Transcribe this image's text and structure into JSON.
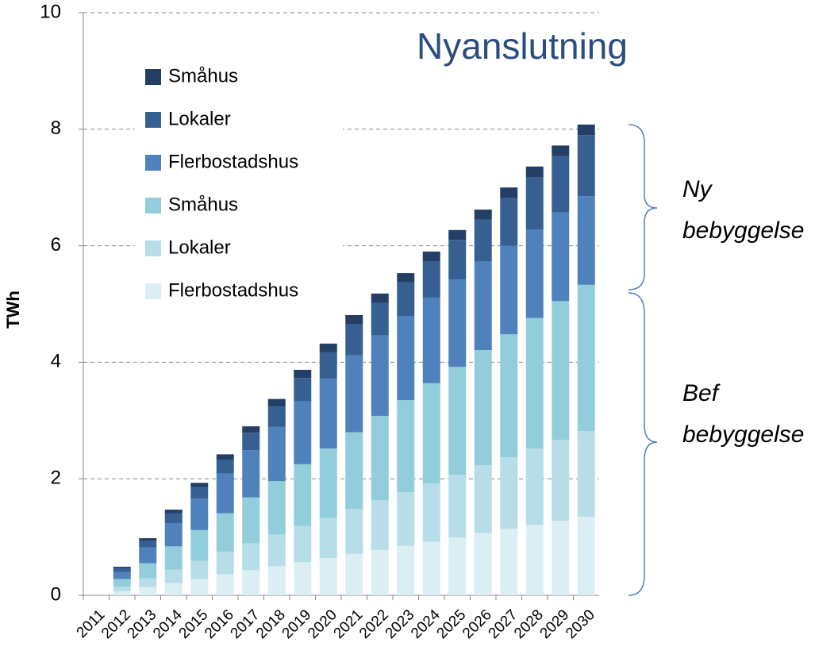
{
  "chart_data": {
    "type": "stacked_bar",
    "title": "Nyanslutning",
    "y_label": "TWh",
    "annotations": [
      [
        "Ny",
        "bebyggelse"
      ],
      [
        "Bef",
        "bebyggelse"
      ]
    ],
    "categories": [
      "2011",
      "2012",
      "2013",
      "2014",
      "2015",
      "2016",
      "2017",
      "2018",
      "2019",
      "2020",
      "2021",
      "2022",
      "2023",
      "2024",
      "2025",
      "2026",
      "2027",
      "2028",
      "2029",
      "2030"
    ],
    "ylim": [
      0,
      10
    ],
    "yticks": [
      0,
      2,
      4,
      6,
      8,
      10
    ],
    "grid": true,
    "series": [
      {
        "name": "Flerbostadshus",
        "color": "#dbeef4",
        "values": [
          0,
          0.07,
          0.14,
          0.21,
          0.28,
          0.36,
          0.43,
          0.5,
          0.57,
          0.64,
          0.71,
          0.78,
          0.85,
          0.92,
          0.99,
          1.07,
          1.14,
          1.21,
          1.28,
          1.35
        ]
      },
      {
        "name": "Lokaler",
        "color": "#b7dde8",
        "values": [
          0,
          0.08,
          0.15,
          0.23,
          0.31,
          0.39,
          0.46,
          0.54,
          0.62,
          0.69,
          0.77,
          0.85,
          0.92,
          1.0,
          1.08,
          1.16,
          1.23,
          1.31,
          1.39,
          1.47
        ]
      },
      {
        "name": "Småhus",
        "color": "#92cddc",
        "values": [
          0,
          0.13,
          0.26,
          0.4,
          0.53,
          0.66,
          0.79,
          0.92,
          1.06,
          1.19,
          1.32,
          1.45,
          1.58,
          1.72,
          1.85,
          1.98,
          2.11,
          2.24,
          2.38,
          2.51
        ]
      },
      {
        "name": "Flerbostadshus",
        "color": "#4f81bd",
        "values": [
          0,
          0.12,
          0.27,
          0.4,
          0.54,
          0.68,
          0.81,
          0.93,
          1.08,
          1.2,
          1.32,
          1.38,
          1.44,
          1.47,
          1.5,
          1.52,
          1.52,
          1.52,
          1.52,
          1.52
        ]
      },
      {
        "name": "Lokaler",
        "color": "#376092",
        "values": [
          0,
          0.07,
          0.12,
          0.17,
          0.2,
          0.24,
          0.3,
          0.35,
          0.4,
          0.45,
          0.53,
          0.56,
          0.58,
          0.62,
          0.68,
          0.72,
          0.82,
          0.9,
          0.97,
          1.05
        ]
      },
      {
        "name": "Småhus",
        "color": "#243f66",
        "values": [
          0,
          0.02,
          0.04,
          0.06,
          0.07,
          0.09,
          0.11,
          0.13,
          0.14,
          0.15,
          0.16,
          0.16,
          0.16,
          0.17,
          0.17,
          0.17,
          0.18,
          0.18,
          0.18,
          0.18
        ]
      }
    ]
  }
}
